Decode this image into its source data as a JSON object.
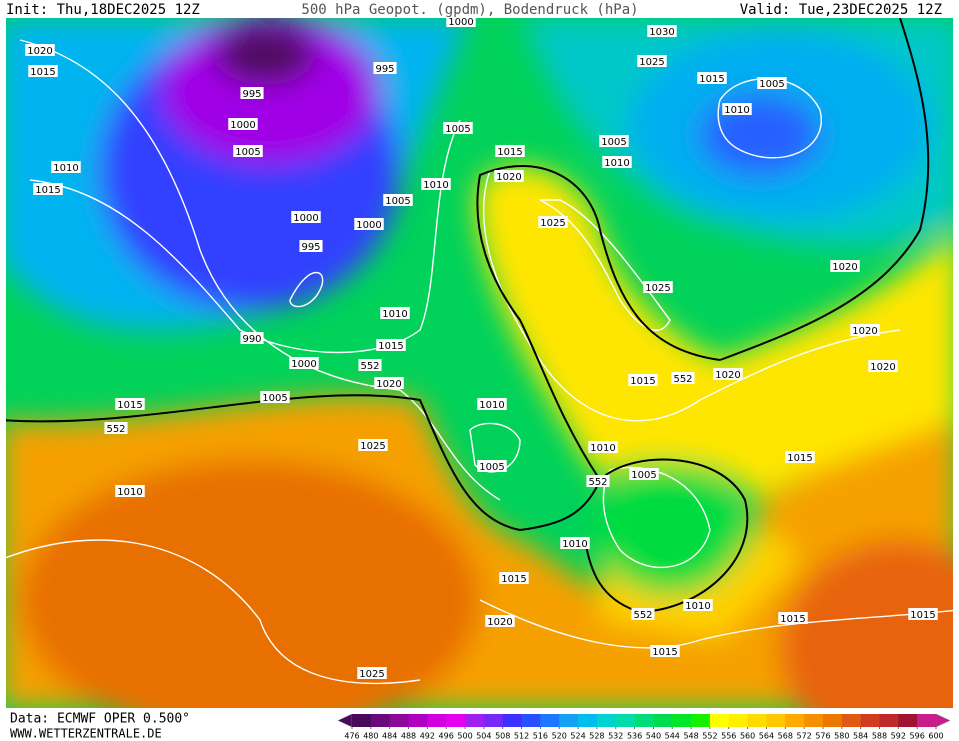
{
  "header": {
    "init": "Init: Thu,18DEC2025 12Z",
    "title": "500 hPa Geopot. (gpdm), Bodendruck (hPa)",
    "valid": "Valid: Tue,23DEC2025 12Z"
  },
  "footer": {
    "source": "Data: ECMWF OPER 0.500°",
    "website": "WWW.WETTERZENTRALE.DE"
  },
  "map": {
    "contour_labels": [
      1020,
      1015,
      1010,
      1015,
      995,
      1000,
      1005,
      1000,
      995,
      990,
      1000,
      1005,
      1015,
      552,
      1010,
      995,
      1005,
      1010,
      1005,
      1000,
      1010,
      1015,
      552,
      1020,
      1025,
      1025,
      1015,
      1020,
      1025,
      1005,
      1010,
      1030,
      1025,
      1015,
      1005,
      1010,
      1020,
      1020,
      1020,
      1025,
      1015,
      552,
      1020,
      1010,
      1005,
      1010,
      1005,
      552,
      1010,
      1015,
      1020,
      552,
      1010,
      1015,
      1015,
      1015,
      1015,
      1000
    ]
  },
  "colorbar": {
    "ticks": [
      476,
      480,
      484,
      488,
      492,
      496,
      500,
      504,
      508,
      512,
      516,
      520,
      524,
      528,
      532,
      536,
      540,
      544,
      548,
      552,
      556,
      560,
      564,
      568,
      572,
      576,
      580,
      584,
      588,
      592,
      596,
      600
    ],
    "colors": [
      "#4a0a5a",
      "#6a0a7a",
      "#8c0a9a",
      "#b000c0",
      "#d200dc",
      "#e600f0",
      "#a020f0",
      "#7828f5",
      "#3c32ff",
      "#2850ff",
      "#1e78ff",
      "#14a0f5",
      "#00beeb",
      "#00d2d2",
      "#00dcaa",
      "#00dc78",
      "#00dc50",
      "#00e628",
      "#14f000",
      "#ffff00",
      "#fff000",
      "#ffdc00",
      "#ffc800",
      "#ffaa00",
      "#f59100",
      "#eb7800",
      "#e15a14",
      "#d23c1e",
      "#be2828",
      "#a01432",
      "#c81e8c"
    ]
  }
}
